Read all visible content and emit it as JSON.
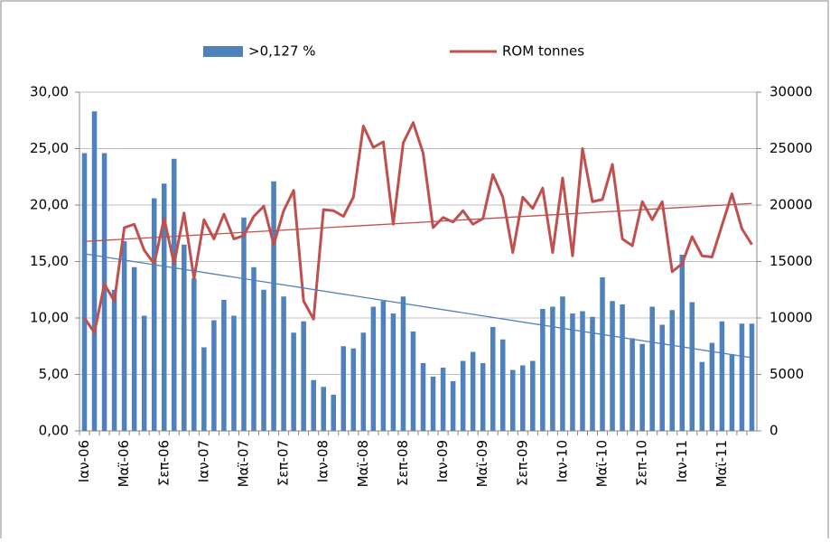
{
  "chart_data": {
    "type": "bar-line",
    "categories": [
      "Ιαν-06",
      null,
      null,
      null,
      "Μαϊ-06",
      null,
      null,
      null,
      "Σεπ-06",
      null,
      null,
      null,
      "Ιαν-07",
      null,
      null,
      null,
      "Μαϊ-07",
      null,
      null,
      null,
      "Σεπ-07",
      null,
      null,
      null,
      "Ιαν-08",
      null,
      null,
      null,
      "Μαϊ-08",
      null,
      null,
      null,
      "Σεπ-08",
      null,
      null,
      null,
      "Ιαν-09",
      null,
      null,
      null,
      "Μαϊ-09",
      null,
      null,
      null,
      "Σεπ-09",
      null,
      null,
      null,
      "Ιαν-10",
      null,
      null,
      null,
      "Μαϊ-10",
      null,
      null,
      null,
      "Σεπ-10",
      null,
      null,
      null,
      "Ιαν-11",
      null,
      null,
      null,
      "Μαϊ-11",
      null,
      null,
      null
    ],
    "series": [
      {
        "name": ">0,127 %",
        "type": "bar",
        "color": "#4f81bd",
        "axis": "y",
        "trendline": true,
        "values": [
          24.6,
          28.3,
          24.6,
          12.5,
          16.8,
          14.5,
          10.2,
          20.6,
          21.9,
          24.1,
          16.5,
          13.5,
          7.4,
          9.8,
          11.6,
          10.2,
          18.9,
          14.5,
          12.5,
          22.1,
          11.9,
          8.7,
          9.7,
          4.5,
          3.9,
          3.2,
          7.5,
          7.3,
          8.7,
          11.0,
          11.5,
          10.4,
          11.9,
          8.8,
          6.0,
          4.8,
          5.6,
          4.4,
          6.2,
          7.0,
          6.0,
          9.2,
          8.1,
          5.4,
          5.8,
          6.2,
          10.8,
          11.0,
          11.9,
          10.4,
          10.6,
          10.1,
          13.6,
          11.5,
          11.2,
          8.2,
          7.7,
          11.0,
          9.4,
          10.7,
          15.6,
          11.4,
          6.1,
          7.8,
          9.7,
          6.8,
          9.5,
          9.5
        ]
      },
      {
        "name": "ROM tonnes",
        "type": "line",
        "color": "#c0504d",
        "axis": "y2",
        "trendline": true,
        "values": [
          10000,
          8700,
          13000,
          11500,
          18000,
          18300,
          16000,
          14800,
          18800,
          14800,
          19300,
          13500,
          18700,
          17000,
          19200,
          17000,
          17300,
          19000,
          19900,
          16500,
          19500,
          21300,
          11500,
          9900,
          19600,
          19500,
          19000,
          20700,
          27000,
          25100,
          25600,
          18300,
          25500,
          27300,
          24600,
          18000,
          18900,
          18500,
          19500,
          18300,
          18800,
          22700,
          20700,
          15800,
          20700,
          19700,
          21500,
          15800,
          22400,
          15500,
          25000,
          20300,
          20500,
          23600,
          17000,
          16400,
          20300,
          18700,
          20300,
          14100,
          14800,
          17200,
          15500,
          15400,
          18200,
          21000,
          17900,
          16500
        ]
      }
    ],
    "ylim": [
      0,
      30
    ],
    "yticks": [
      {
        "value": 0,
        "label": "0,00"
      },
      {
        "value": 5,
        "label": "5,00"
      },
      {
        "value": 10,
        "label": "10,00"
      },
      {
        "value": 15,
        "label": "15,00"
      },
      {
        "value": 20,
        "label": "20,00"
      },
      {
        "value": 25,
        "label": "25,00"
      },
      {
        "value": 30,
        "label": "30,00"
      }
    ],
    "y2lim": [
      0,
      30000
    ],
    "y2ticks": [
      0,
      5000,
      10000,
      15000,
      20000,
      25000,
      30000
    ],
    "grid": true,
    "legend": "top"
  }
}
